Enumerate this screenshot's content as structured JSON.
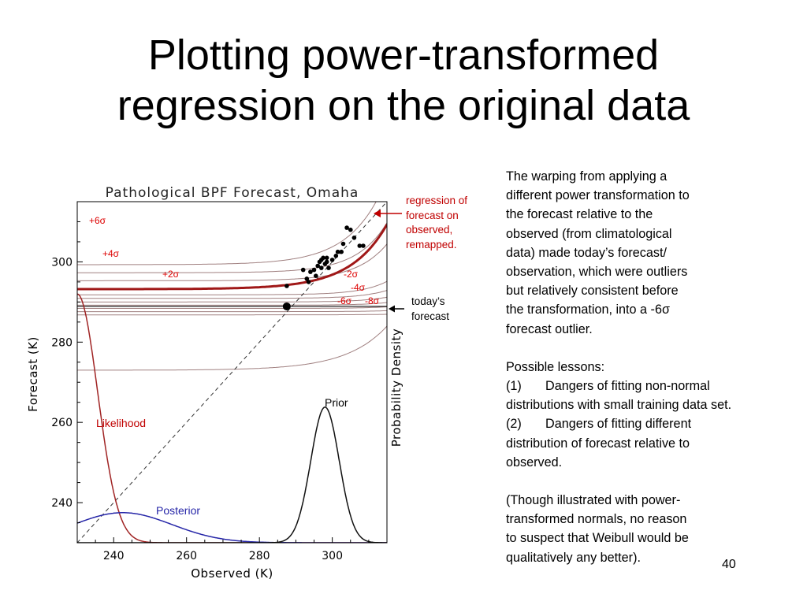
{
  "slide": {
    "title_line1": "Plotting power-transformed",
    "title_line2": "regression on the original data",
    "page_number": "40"
  },
  "annotations": {
    "regression": [
      "regression of",
      "forecast on",
      "observed,",
      "remapped."
    ],
    "todays_forecast": [
      "today’s",
      "forecast"
    ]
  },
  "side_text": {
    "paragraph1": [
      "The warping from applying a",
      "different power transformation to",
      "the forecast relative to the",
      "observed (from climatological",
      "data) made today’s forecast/",
      "observation, which were outliers",
      "but relatively consistent before",
      "the transformation, into a -6σ",
      "forecast outlier."
    ],
    "lessons_heading": "Possible lessons:",
    "lesson1": {
      "num": "(1)",
      "line1": "Dangers of fitting non-normal",
      "line2": "distributions with small training data set."
    },
    "lesson2": {
      "num": "(2)",
      "line1": "Dangers of fitting different",
      "line2": "distribution of forecast relative to",
      "line3": "observed."
    },
    "paragraph3": [
      "(Though illustrated with power-",
      "transformed normals, no reason",
      "to suspect that Weibull would be",
      "qualitatively any better)."
    ]
  },
  "chart_data": {
    "type": "line",
    "title": "Pathological BPF Forecast, Omaha",
    "xlabel": "Observed (K)",
    "ylabel": "Forecast (K)",
    "right_label": "Probability Density",
    "xlim": [
      230,
      315
    ],
    "ylim": [
      230,
      315
    ],
    "x_ticks": [
      240,
      260,
      280,
      300
    ],
    "y_ticks": [
      240,
      260,
      280,
      300
    ],
    "sigma_labels": [
      "+6σ",
      "+4σ",
      "+2σ",
      "-2σ",
      "-4σ",
      "-6σ",
      "-8σ"
    ],
    "todays_forecast": {
      "x": 287.5,
      "y": 288.9
    },
    "training_points": [
      [
        287.5,
        294
      ],
      [
        292,
        298
      ],
      [
        293,
        295.8
      ],
      [
        293.5,
        295
      ],
      [
        294,
        297.5
      ],
      [
        295,
        298
      ],
      [
        295.5,
        296.5
      ],
      [
        296,
        299
      ],
      [
        296.5,
        300
      ],
      [
        297,
        300.5
      ],
      [
        297,
        298.5
      ],
      [
        297.5,
        301
      ],
      [
        298,
        299.5
      ],
      [
        298.5,
        300
      ],
      [
        298.5,
        301
      ],
      [
        299,
        298.5
      ],
      [
        300,
        300.5
      ],
      [
        301,
        301.5
      ],
      [
        301.5,
        302.5
      ],
      [
        302.5,
        302.5
      ],
      [
        303,
        304.5
      ],
      [
        304,
        308.5
      ],
      [
        305,
        308
      ],
      [
        306,
        306
      ],
      [
        307.5,
        304
      ],
      [
        308.5,
        304
      ]
    ],
    "series": [
      {
        "name": "Likelihood",
        "color": "#a02424"
      },
      {
        "name": "Posterior",
        "color": "#2626a8"
      },
      {
        "name": "Prior",
        "color": "#111111"
      }
    ],
    "colors": {
      "regression": "#a01818",
      "quantiles": "#a08080",
      "sigma_labels": "#dd0000"
    }
  }
}
